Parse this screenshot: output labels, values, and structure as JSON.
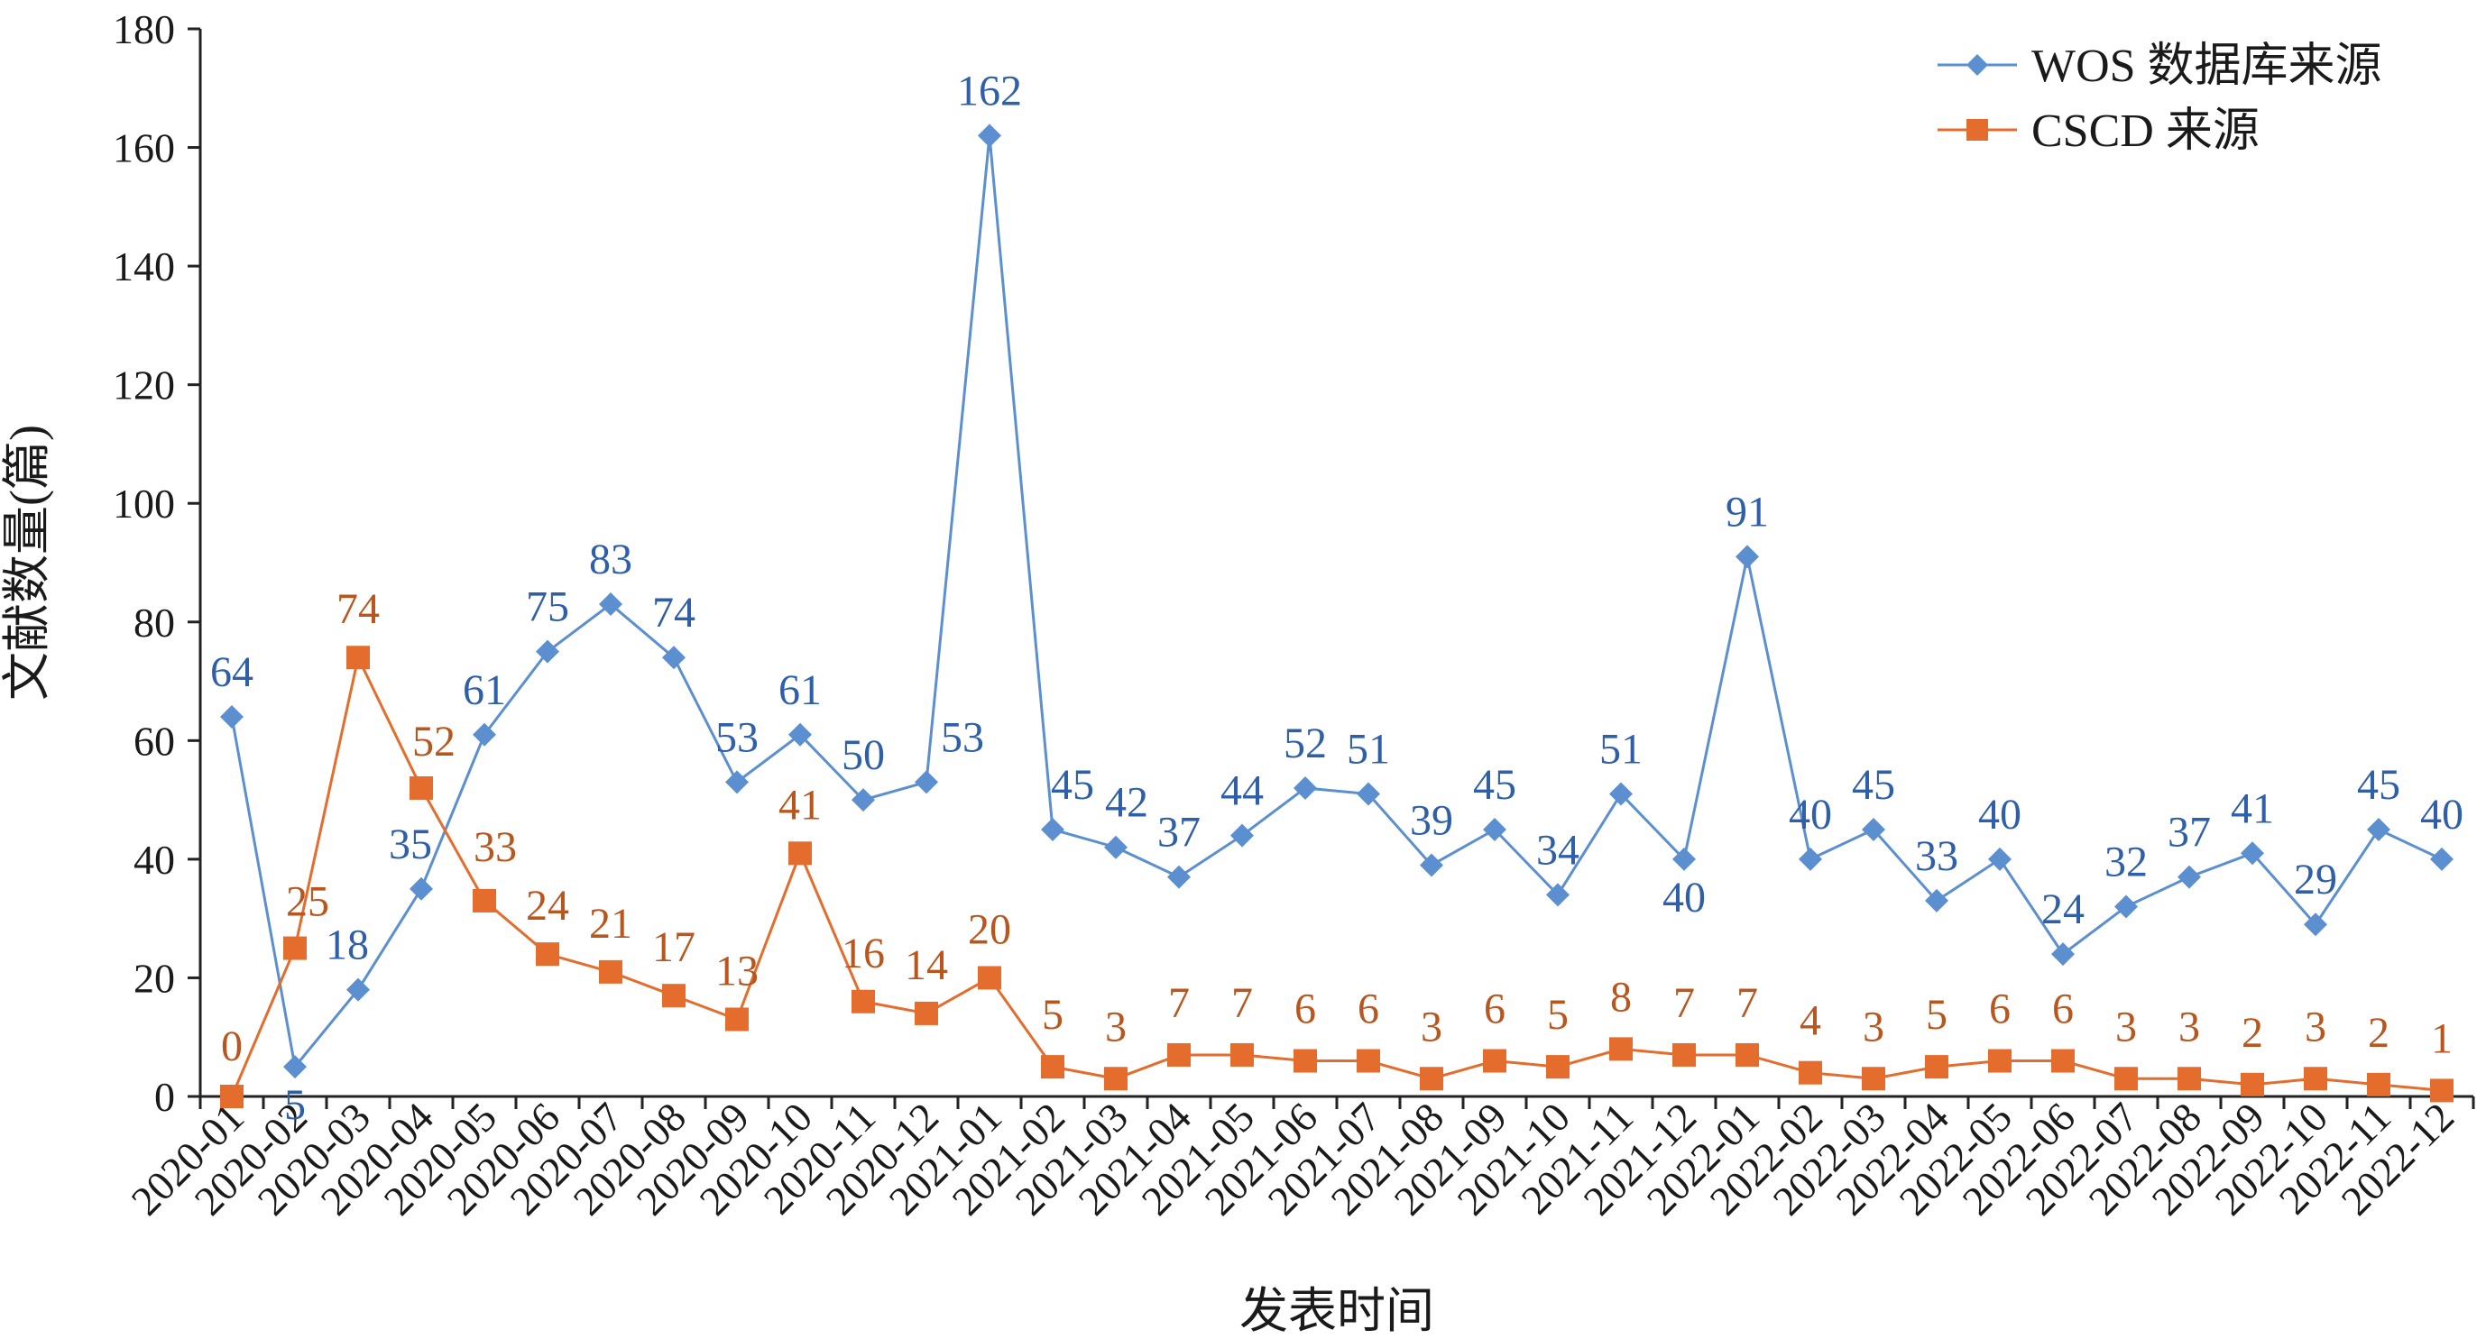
{
  "chart_data": {
    "type": "line",
    "xlabel": "发表时间",
    "ylabel": "文献数量(篇)",
    "ylim": [
      0,
      180
    ],
    "yticks": [
      0,
      20,
      40,
      60,
      80,
      100,
      120,
      140,
      160,
      180
    ],
    "grid": false,
    "legend_position": "top-right",
    "categories": [
      "2020-01",
      "2020-02",
      "2020-03",
      "2020-04",
      "2020-05",
      "2020-06",
      "2020-07",
      "2020-08",
      "2020-09",
      "2020-10",
      "2020-11",
      "2020-12",
      "2021-01",
      "2021-02",
      "2021-03",
      "2021-04",
      "2021-05",
      "2021-06",
      "2021-07",
      "2021-08",
      "2021-09",
      "2021-10",
      "2021-11",
      "2021-12",
      "2022-01",
      "2022-02",
      "2022-03",
      "2022-04",
      "2022-05",
      "2022-06",
      "2022-07",
      "2022-08",
      "2022-09",
      "2022-10",
      "2022-11",
      "2022-12"
    ],
    "series": [
      {
        "name": "WOS 数据库来源",
        "color": "#5b8fd0",
        "label_color": "#2f5fa8",
        "marker": "diamond",
        "values": [
          64,
          5,
          18,
          35,
          61,
          75,
          83,
          74,
          53,
          61,
          50,
          53,
          162,
          45,
          42,
          37,
          44,
          52,
          51,
          39,
          45,
          34,
          51,
          40,
          91,
          40,
          45,
          33,
          40,
          24,
          32,
          37,
          41,
          29,
          45,
          40
        ]
      },
      {
        "name": "CSCD 来源",
        "color": "#e46c2c",
        "label_color": "#b8561e",
        "marker": "square",
        "values": [
          0,
          25,
          74,
          52,
          33,
          24,
          21,
          17,
          13,
          41,
          16,
          14,
          20,
          5,
          3,
          7,
          7,
          6,
          6,
          3,
          6,
          5,
          8,
          7,
          7,
          4,
          3,
          5,
          6,
          6,
          3,
          3,
          2,
          3,
          2,
          1
        ]
      }
    ]
  }
}
